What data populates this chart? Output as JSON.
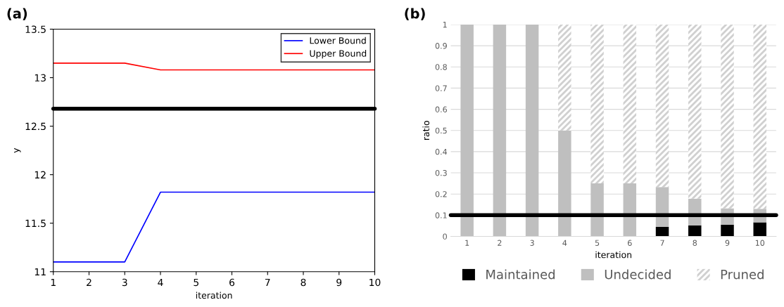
{
  "chart_data": [
    {
      "type": "line",
      "annotations": [
        "(a)"
      ],
      "xlabel": "iteration",
      "ylabel": "y",
      "x": [
        1,
        2,
        3,
        4,
        5,
        6,
        7,
        8,
        9,
        10
      ],
      "series": [
        {
          "name": "Lower Bound",
          "color": "#0000ff",
          "values": [
            11.1,
            11.1,
            11.1,
            11.82,
            11.82,
            11.82,
            11.82,
            11.82,
            11.82,
            11.82
          ]
        },
        {
          "name": "Upper Bound",
          "color": "#ff0000",
          "values": [
            13.15,
            13.15,
            13.15,
            13.08,
            13.08,
            13.08,
            13.08,
            13.08,
            13.08,
            13.08
          ]
        }
      ],
      "xlim": [
        1,
        10
      ],
      "xticks": [
        1,
        2,
        3,
        4,
        5,
        6,
        7,
        8,
        9,
        10
      ],
      "ylim": [
        11,
        13.5
      ],
      "yticks": [
        11,
        11.5,
        12,
        12.5,
        13,
        13.5
      ],
      "ref_lines": [
        {
          "axis": "y",
          "value": 12.68,
          "label": null,
          "color": "#000000"
        }
      ],
      "grid": false,
      "legend": "top right"
    },
    {
      "type": "bar",
      "stacked": true,
      "annotations": [
        "(b)"
      ],
      "xlabel": "iteration",
      "ylabel": "ratio",
      "categories": [
        "1",
        "2",
        "3",
        "4",
        "5",
        "6",
        "7",
        "8",
        "9",
        "10"
      ],
      "series": [
        {
          "name": "Maintained",
          "color": "#000000",
          "values": [
            0,
            0,
            0,
            0,
            0,
            0,
            0.045,
            0.052,
            0.055,
            0.066
          ]
        },
        {
          "name": "Undecided",
          "color": "#bfbfbf",
          "values": [
            1,
            1,
            1,
            0.5,
            0.25,
            0.25,
            0.188,
            0.126,
            0.078,
            0.064
          ]
        },
        {
          "name": "Pruned",
          "color": "#d0d0d0",
          "values": [
            0,
            0,
            0,
            0.5,
            0.75,
            0.75,
            0.767,
            0.822,
            0.867,
            0.87
          ]
        }
      ],
      "ylim": [
        0,
        1
      ],
      "yticks": [
        0,
        0.1,
        0.2,
        0.3,
        0.4,
        0.5,
        0.6,
        0.7,
        0.8,
        0.9,
        1
      ],
      "ref_lines": [
        {
          "axis": "y",
          "value": 0.1,
          "label": null,
          "color": "#000000"
        }
      ],
      "grid": "y",
      "legend": "bottom"
    }
  ]
}
